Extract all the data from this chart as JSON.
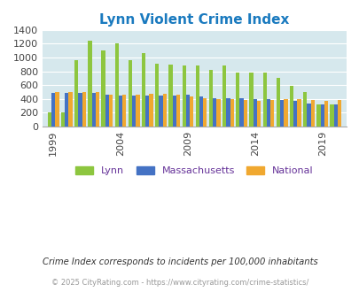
{
  "title": "Lynn Violent Crime Index",
  "subtitle": "Crime Index corresponds to incidents per 100,000 inhabitants",
  "footer": "© 2025 CityRating.com - https://www.cityrating.com/crime-statistics/",
  "years": [
    1999,
    2000,
    2001,
    2002,
    2003,
    2004,
    2005,
    2006,
    2007,
    2008,
    2009,
    2010,
    2011,
    2012,
    2013,
    2014,
    2015,
    2016,
    2017,
    2018,
    2019,
    2020
  ],
  "lynn": [
    205,
    205,
    960,
    1240,
    1100,
    1200,
    960,
    1060,
    910,
    900,
    880,
    890,
    820,
    890,
    780,
    780,
    780,
    710,
    595,
    495,
    325,
    325
  ],
  "massachusetts": [
    480,
    480,
    480,
    480,
    460,
    450,
    445,
    445,
    450,
    450,
    460,
    430,
    415,
    410,
    405,
    400,
    390,
    385,
    370,
    330,
    325,
    325
  ],
  "national": [
    505,
    505,
    505,
    500,
    465,
    460,
    465,
    475,
    470,
    455,
    435,
    405,
    395,
    390,
    385,
    375,
    385,
    395,
    395,
    380,
    375,
    380
  ],
  "lynn_color": "#8dc63f",
  "mass_color": "#4472c4",
  "national_color": "#f0a830",
  "bg_color": "#d6e8ed",
  "title_color": "#1a7abf",
  "subtitle_color": "#333333",
  "footer_color": "#999999",
  "legend_label_color": "#663399",
  "ylim": [
    0,
    1400
  ],
  "yticks": [
    0,
    200,
    400,
    600,
    800,
    1000,
    1200,
    1400
  ],
  "xtick_year_labels": [
    "1999",
    "2004",
    "2009",
    "2014",
    "2019"
  ],
  "xtick_year_values": [
    1999,
    2004,
    2009,
    2014,
    2019
  ]
}
